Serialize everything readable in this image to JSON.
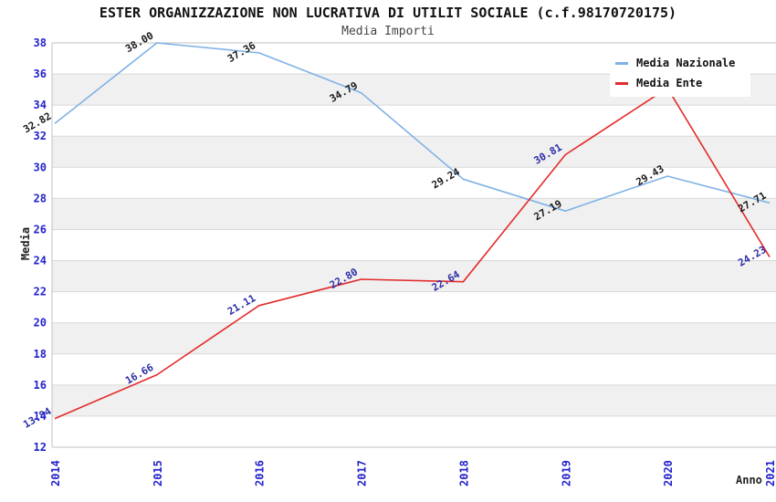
{
  "header": {
    "title": "ESTER ORGANIZZAZIONE NON LUCRATIVA DI UTILIT SOCIALE (c.f.98170720175)",
    "subtitle": "Media Importi"
  },
  "chart_data": {
    "type": "line",
    "title": "ESTER ORGANIZZAZIONE NON LUCRATIVA DI UTILIT SOCIALE (c.f.98170720175)",
    "subtitle": "Media Importi",
    "xlabel": "Anno",
    "ylabel": "Media",
    "x": [
      "2014",
      "2015",
      "2016",
      "2017",
      "2018",
      "2019",
      "2020",
      "2021"
    ],
    "ylim": [
      12,
      38
    ],
    "ytick_step": 2,
    "grid": "horizontal",
    "band_fill": true,
    "legend_position": "top-right",
    "series": [
      {
        "name": "Media Nazionale",
        "color": "#7fb2e5",
        "label_color": "#1a1a1a",
        "values": [
          32.82,
          38.0,
          37.36,
          34.79,
          29.24,
          27.19,
          29.43,
          27.71
        ],
        "labels": [
          "32.82",
          "38.00",
          "37.36",
          "34.79",
          "29.24",
          "27.19",
          "29.43",
          "27.71"
        ]
      },
      {
        "name": "Media Ente",
        "color": "#e32b2b",
        "label_color": "#2d2da8",
        "values": [
          13.84,
          16.66,
          21.11,
          22.8,
          22.64,
          30.81,
          35.1,
          24.23
        ],
        "labels": [
          "13.84",
          "16.66",
          "21.11",
          "22.80",
          "22.64",
          "30.81",
          null,
          "24.23"
        ]
      }
    ]
  },
  "colors": {
    "tick_label": "#2222cc",
    "grid_line": "#d8d8d8",
    "band_gray": "#f0f0f0",
    "frame": "#c0c0c0",
    "background": "#ffffff"
  }
}
